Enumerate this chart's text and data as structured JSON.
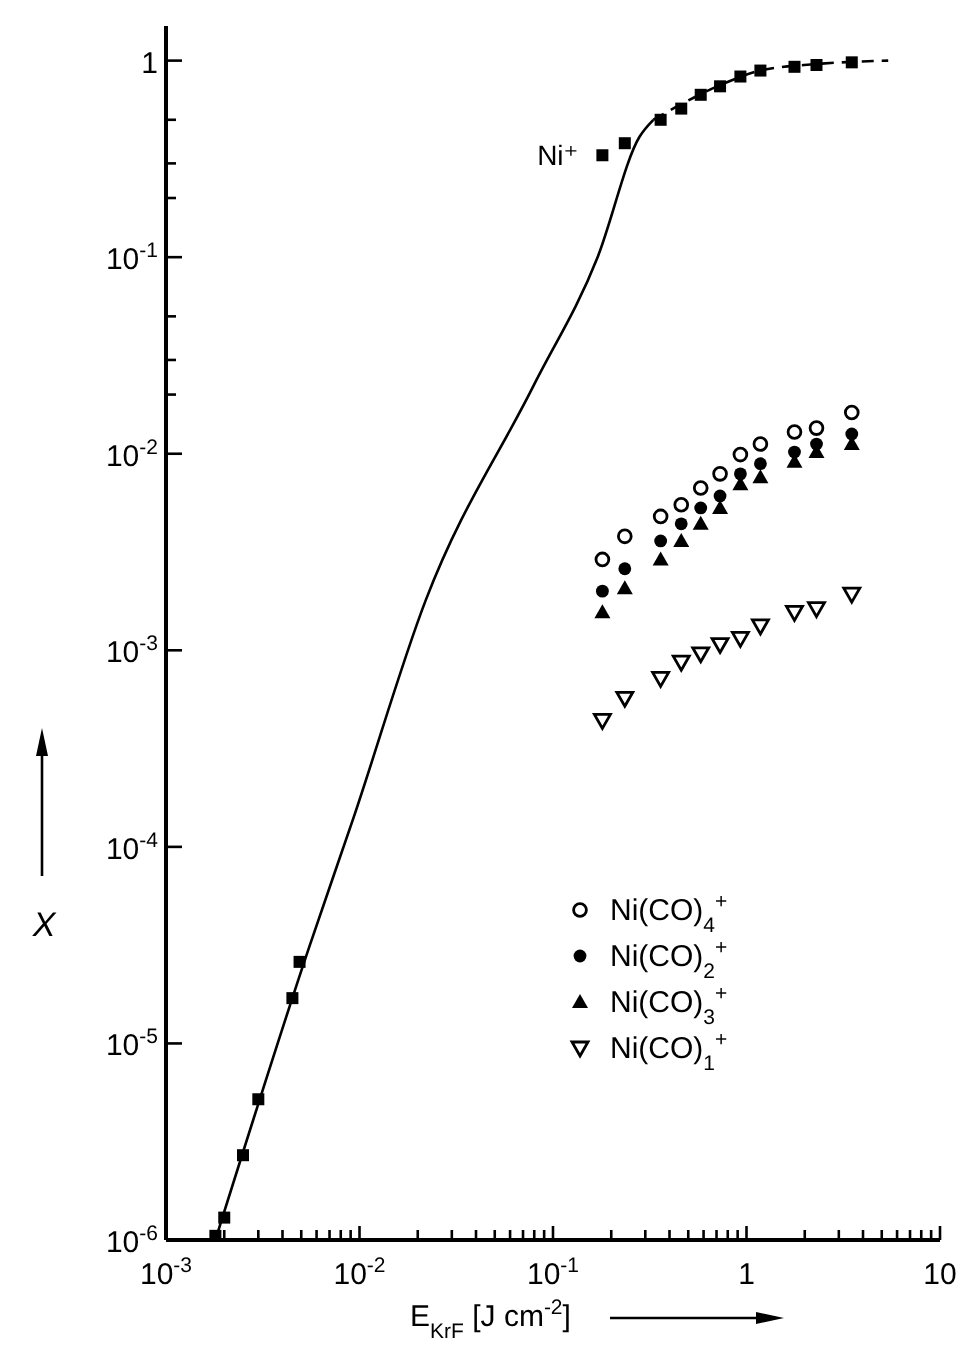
{
  "chart_data": {
    "type": "scatter",
    "xlabel": "E$_{KrF}$ [J cm$^{-2}$]",
    "ylabel": "X",
    "log": "xy",
    "grid": false,
    "legend": "bottom right",
    "xlim": [
      0.001,
      10
    ],
    "ylim": [
      1e-06,
      1.5
    ],
    "xticks": [
      {
        "value": 0.001,
        "label": "10$^{-3}$"
      },
      {
        "value": 0.002,
        "label": null
      },
      {
        "value": 0.003,
        "label": null
      },
      {
        "value": 0.004,
        "label": null
      },
      {
        "value": 0.005,
        "label": null
      },
      {
        "value": 0.006,
        "label": null
      },
      {
        "value": 0.007,
        "label": null
      },
      {
        "value": 0.008,
        "label": null
      },
      {
        "value": 0.009,
        "label": null
      },
      {
        "value": 0.01,
        "label": "10$^{-2}$"
      },
      {
        "value": 0.02,
        "label": null
      },
      {
        "value": 0.03,
        "label": null
      },
      {
        "value": 0.04,
        "label": null
      },
      {
        "value": 0.05,
        "label": null
      },
      {
        "value": 0.06,
        "label": null
      },
      {
        "value": 0.07,
        "label": null
      },
      {
        "value": 0.08,
        "label": null
      },
      {
        "value": 0.09,
        "label": null
      },
      {
        "value": 0.1,
        "label": "10$^{-1}$"
      },
      {
        "value": 0.2,
        "label": null
      },
      {
        "value": 0.3,
        "label": null
      },
      {
        "value": 0.4,
        "label": null
      },
      {
        "value": 0.5,
        "label": null
      },
      {
        "value": 0.6,
        "label": null
      },
      {
        "value": 0.7,
        "label": null
      },
      {
        "value": 0.8,
        "label": null
      },
      {
        "value": 0.9,
        "label": null
      },
      1,
      {
        "value": 2,
        "label": null
      },
      {
        "value": 3,
        "label": null
      },
      {
        "value": 4,
        "label": null
      },
      {
        "value": 5,
        "label": null
      },
      {
        "value": 6,
        "label": null
      },
      {
        "value": 7,
        "label": null
      },
      {
        "value": 8,
        "label": null
      },
      {
        "value": 9,
        "label": null
      },
      10
    ],
    "yticks": [
      {
        "value": 1e-06,
        "label": "10$^{-6}$"
      },
      {
        "value": 1e-05,
        "label": "10$^{-5}$"
      },
      {
        "value": 0.0001,
        "label": "10$^{-4}$"
      },
      {
        "value": 0.001,
        "label": "10$^{-3}$"
      },
      {
        "value": 0.01,
        "label": "10$^{-2}$"
      },
      {
        "value": 0.02,
        "label": null
      },
      {
        "value": 0.03,
        "label": null
      },
      {
        "value": 0.05,
        "label": null
      },
      {
        "value": 0.1,
        "label": "10$^{-1}$"
      },
      {
        "value": 0.2,
        "label": null
      },
      {
        "value": 0.3,
        "label": null
      },
      {
        "value": 0.5,
        "label": null
      },
      1
    ],
    "series": [
      {
        "name": "Ni⁺",
        "color": "#000000",
        "marker": "square",
        "x": [
          0.0018,
          0.002,
          0.0025,
          0.003,
          0.0045,
          0.0049,
          0.18,
          0.235,
          0.36,
          0.46,
          0.58,
          0.73,
          0.93,
          1.18,
          1.77,
          2.3,
          3.5
        ],
        "values": [
          1.05e-06,
          1.3e-06,
          2.7e-06,
          5.2e-06,
          1.7e-05,
          2.6e-05,
          0.33,
          0.38,
          0.5,
          0.57,
          0.67,
          0.74,
          0.83,
          0.89,
          0.93,
          0.95,
          0.98
        ]
      },
      {
        "type": "line",
        "color": "#000000",
        "line_style": "solid",
        "x": [
          0.0018,
          0.0055,
          0.0093,
          0.022,
          0.079,
          0.17,
          0.28,
          0.33
        ],
        "values": [
          1e-06,
          3.1e-05,
          0.00014,
          0.0018,
          0.022,
          0.1,
          0.41,
          0.5
        ]
      },
      {
        "type": "line",
        "color": "#000000",
        "line_style": "dashed",
        "x": [
          0.33,
          0.46,
          0.73,
          1.18,
          2.3,
          5.4
        ],
        "values": [
          0.5,
          0.6,
          0.75,
          0.89,
          0.96,
          1
        ]
      },
      {
        "name": "Ni(CO)$_{4}$$^{+}$",
        "color": "#000000",
        "marker": "circle-open",
        "x": [
          0.18,
          0.235,
          0.36,
          0.46,
          0.58,
          0.73,
          0.93,
          1.18,
          1.77,
          2.3,
          3.5
        ],
        "values": [
          0.0029,
          0.0038,
          0.0048,
          0.0055,
          0.0067,
          0.0079,
          0.0099,
          0.0112,
          0.0129,
          0.0135,
          0.0162
        ]
      },
      {
        "name": "Ni(CO)$_{2}$$^{+}$",
        "color": "#000000",
        "marker": "circle",
        "x": [
          0.18,
          0.235,
          0.36,
          0.46,
          0.58,
          0.73,
          0.93,
          1.18,
          1.77,
          2.3,
          3.5
        ],
        "values": [
          0.002,
          0.0026,
          0.0036,
          0.0044,
          0.0053,
          0.0061,
          0.0079,
          0.0089,
          0.0102,
          0.0112,
          0.0126
        ]
      },
      {
        "name": "Ni(CO)$_{3}$$^{+}$",
        "color": "#000000",
        "marker": "triangle",
        "x": [
          0.18,
          0.235,
          0.36,
          0.46,
          0.58,
          0.73,
          0.93,
          1.18,
          1.77,
          2.3,
          3.5
        ],
        "values": [
          0.00156,
          0.00207,
          0.0029,
          0.0036,
          0.0044,
          0.0053,
          0.007,
          0.0076,
          0.0091,
          0.0102,
          0.0112
        ]
      },
      {
        "name": "Ni(CO)$_{1}$$^{+}$",
        "color": "#000000",
        "marker": "triangle-down-open",
        "x": [
          0.18,
          0.235,
          0.36,
          0.46,
          0.58,
          0.73,
          0.93,
          1.18,
          1.77,
          2.3,
          3.5
        ],
        "values": [
          0.00044,
          0.00057,
          0.00072,
          0.00087,
          0.00096,
          0.00107,
          0.00115,
          0.00133,
          0.00156,
          0.00163,
          0.00193
        ]
      }
    ]
  }
}
